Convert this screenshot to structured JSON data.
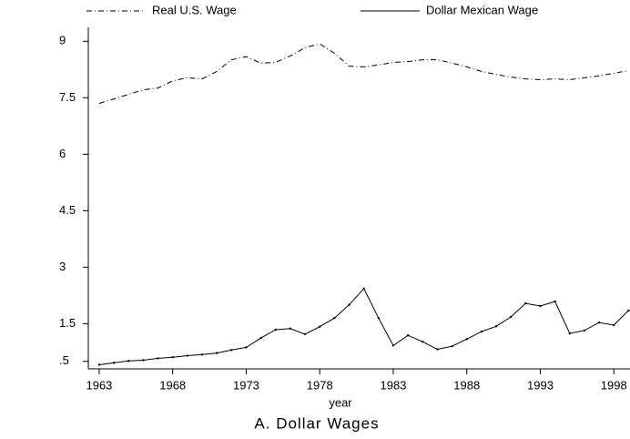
{
  "chart_data": {
    "type": "line",
    "title": "A. Dollar Wages",
    "x_label": "year",
    "x": [
      1963,
      1964,
      1965,
      1966,
      1967,
      1968,
      1969,
      1970,
      1971,
      1972,
      1973,
      1974,
      1975,
      1976,
      1977,
      1978,
      1979,
      1980,
      1981,
      1982,
      1983,
      1984,
      1985,
      1986,
      1987,
      1988,
      1989,
      1990,
      1991,
      1992,
      1993,
      1994,
      1995,
      1996,
      1997,
      1998,
      1999
    ],
    "series": [
      {
        "name": "Real U.S. Wage",
        "color": "#000000",
        "dash": "dashdot",
        "values": [
          7.35,
          7.47,
          7.59,
          7.71,
          7.76,
          7.95,
          8.03,
          8.0,
          8.2,
          8.51,
          8.59,
          8.42,
          8.44,
          8.61,
          8.83,
          8.93,
          8.68,
          8.34,
          8.32,
          8.37,
          8.44,
          8.46,
          8.51,
          8.51,
          8.42,
          8.32,
          8.2,
          8.12,
          8.05,
          8.0,
          7.98,
          8.0,
          7.98,
          8.03,
          8.08,
          8.15,
          8.22
        ]
      },
      {
        "name": "Dollar Mexican Wage",
        "color": "#000000",
        "dash": "solid",
        "values": [
          0.41,
          0.46,
          0.51,
          0.53,
          0.58,
          0.61,
          0.65,
          0.68,
          0.72,
          0.8,
          0.87,
          1.12,
          1.34,
          1.37,
          1.22,
          1.42,
          1.65,
          2.0,
          2.43,
          1.65,
          0.92,
          1.19,
          1.02,
          0.82,
          0.9,
          1.09,
          1.29,
          1.43,
          1.68,
          2.04,
          1.97,
          2.09,
          1.24,
          1.32,
          1.53,
          1.46,
          1.85
        ]
      }
    ],
    "xlim": [
      1962.26,
      1999.1
    ],
    "xticks": [
      1963,
      1968,
      1973,
      1978,
      1983,
      1988,
      1993,
      1998
    ],
    "ylim": [
      0.3,
      9.37
    ],
    "yticks": [
      {
        "value": 0.5,
        "label": ".5"
      },
      1.5,
      3,
      4.5,
      6,
      7.5,
      9
    ],
    "grid": false,
    "legend": "top"
  }
}
